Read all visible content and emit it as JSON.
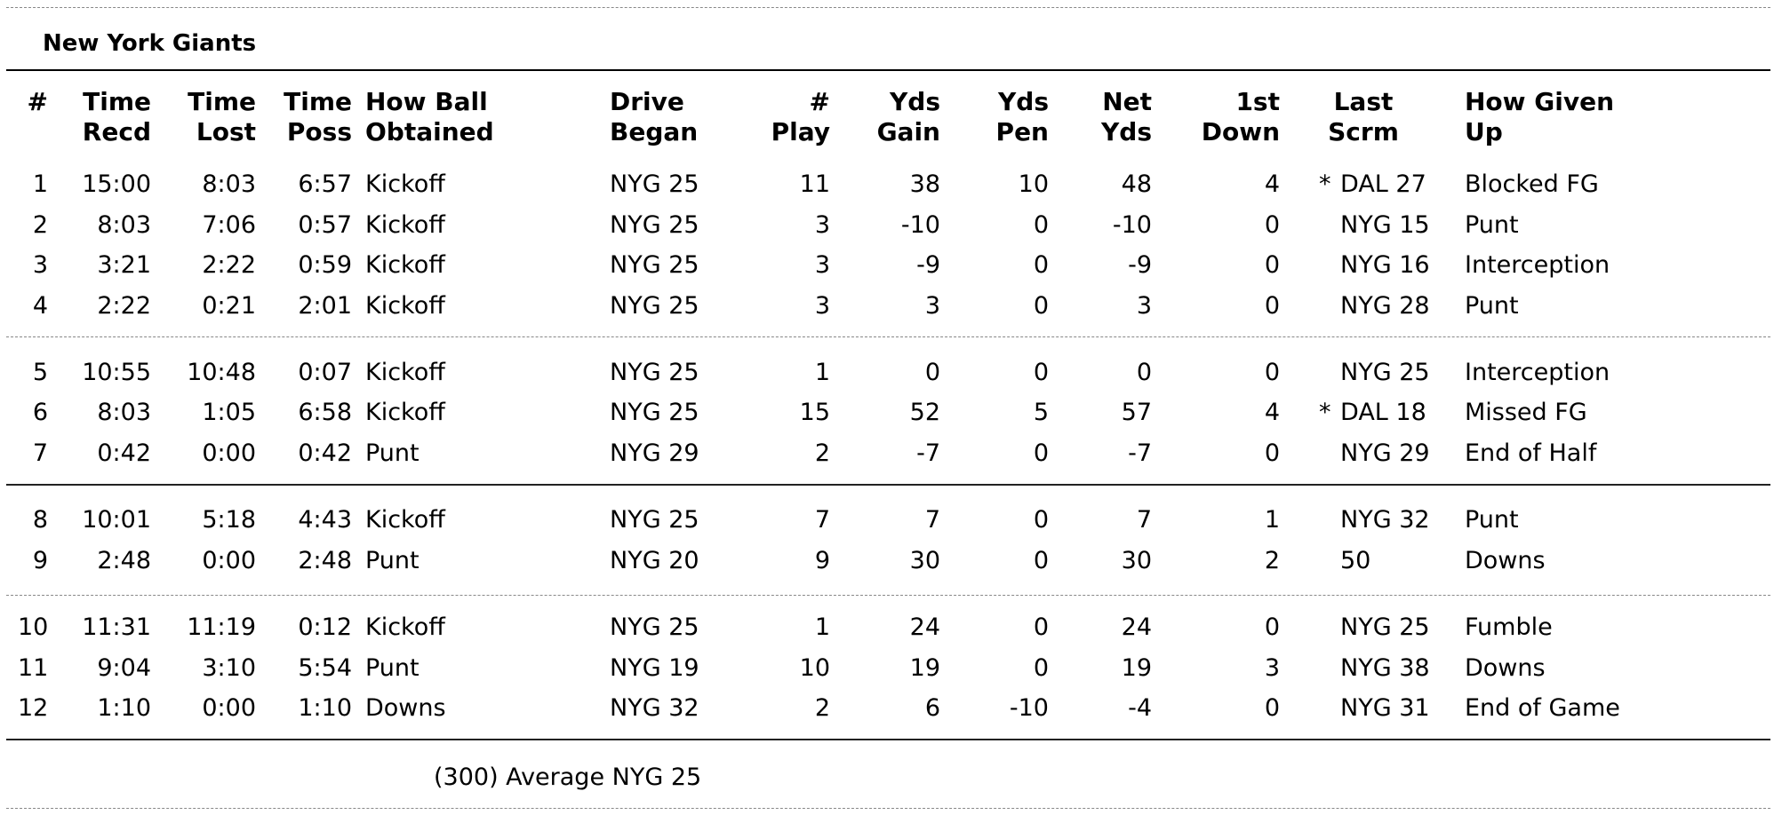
{
  "team": "New York Giants",
  "headers": {
    "num": [
      "#",
      ""
    ],
    "time_recd": [
      "Time",
      "Recd"
    ],
    "time_lost": [
      "Time",
      "Lost"
    ],
    "time_poss": [
      "Time",
      "Poss"
    ],
    "how_obtained": [
      "How Ball",
      "Obtained"
    ],
    "drive_began": [
      "Drive",
      "Began"
    ],
    "plays": [
      "#",
      "Play"
    ],
    "yds_gain": [
      "Yds",
      "Gain"
    ],
    "yds_pen": [
      "Yds",
      "Pen"
    ],
    "net_yds": [
      "Net",
      "Yds"
    ],
    "first_down": [
      "1st",
      "Down"
    ],
    "last_scrm": [
      "Last",
      "Scrm"
    ],
    "how_given_up": [
      "How Given",
      "Up"
    ]
  },
  "drives": [
    {
      "num": "1",
      "recd": "15:00",
      "lost": "8:03",
      "poss": "6:57",
      "obtained": "Kickoff",
      "began": "NYG 25",
      "plays": "11",
      "gain": "38",
      "pen": "10",
      "net": "48",
      "first": "4",
      "marker": "*",
      "scrm": "DAL 27",
      "given": "Blocked FG"
    },
    {
      "num": "2",
      "recd": "8:03",
      "lost": "7:06",
      "poss": "0:57",
      "obtained": "Kickoff",
      "began": "NYG 25",
      "plays": "3",
      "gain": "-10",
      "pen": "0",
      "net": "-10",
      "first": "0",
      "marker": "",
      "scrm": "NYG 15",
      "given": "Punt"
    },
    {
      "num": "3",
      "recd": "3:21",
      "lost": "2:22",
      "poss": "0:59",
      "obtained": "Kickoff",
      "began": "NYG 25",
      "plays": "3",
      "gain": "-9",
      "pen": "0",
      "net": "-9",
      "first": "0",
      "marker": "",
      "scrm": "NYG 16",
      "given": "Interception"
    },
    {
      "num": "4",
      "recd": "2:22",
      "lost": "0:21",
      "poss": "2:01",
      "obtained": "Kickoff",
      "began": "NYG 25",
      "plays": "3",
      "gain": "3",
      "pen": "0",
      "net": "3",
      "first": "0",
      "marker": "",
      "scrm": "NYG 28",
      "given": "Punt"
    },
    {
      "num": "5",
      "recd": "10:55",
      "lost": "10:48",
      "poss": "0:07",
      "obtained": "Kickoff",
      "began": "NYG 25",
      "plays": "1",
      "gain": "0",
      "pen": "0",
      "net": "0",
      "first": "0",
      "marker": "",
      "scrm": "NYG 25",
      "given": "Interception"
    },
    {
      "num": "6",
      "recd": "8:03",
      "lost": "1:05",
      "poss": "6:58",
      "obtained": "Kickoff",
      "began": "NYG 25",
      "plays": "15",
      "gain": "52",
      "pen": "5",
      "net": "57",
      "first": "4",
      "marker": "*",
      "scrm": "DAL 18",
      "given": "Missed FG"
    },
    {
      "num": "7",
      "recd": "0:42",
      "lost": "0:00",
      "poss": "0:42",
      "obtained": "Punt",
      "began": "NYG 29",
      "plays": "2",
      "gain": "-7",
      "pen": "0",
      "net": "-7",
      "first": "0",
      "marker": "",
      "scrm": "NYG 29",
      "given": "End of Half"
    },
    {
      "num": "8",
      "recd": "10:01",
      "lost": "5:18",
      "poss": "4:43",
      "obtained": "Kickoff",
      "began": "NYG 25",
      "plays": "7",
      "gain": "7",
      "pen": "0",
      "net": "7",
      "first": "1",
      "marker": "",
      "scrm": "NYG 32",
      "given": "Punt"
    },
    {
      "num": "9",
      "recd": "2:48",
      "lost": "0:00",
      "poss": "2:48",
      "obtained": "Punt",
      "began": "NYG 20",
      "plays": "9",
      "gain": "30",
      "pen": "0",
      "net": "30",
      "first": "2",
      "marker": "",
      "scrm": "50",
      "given": "Downs"
    },
    {
      "num": "10",
      "recd": "11:31",
      "lost": "11:19",
      "poss": "0:12",
      "obtained": "Kickoff",
      "began": "NYG 25",
      "plays": "1",
      "gain": "24",
      "pen": "0",
      "net": "24",
      "first": "0",
      "marker": "",
      "scrm": "NYG 25",
      "given": "Fumble"
    },
    {
      "num": "11",
      "recd": "9:04",
      "lost": "3:10",
      "poss": "5:54",
      "obtained": "Punt",
      "began": "NYG 19",
      "plays": "10",
      "gain": "19",
      "pen": "0",
      "net": "19",
      "first": "3",
      "marker": "",
      "scrm": "NYG 38",
      "given": "Downs"
    },
    {
      "num": "12",
      "recd": "1:10",
      "lost": "0:00",
      "poss": "1:10",
      "obtained": "Downs",
      "began": "NYG 32",
      "plays": "2",
      "gain": "6",
      "pen": "-10",
      "net": "-4",
      "first": "0",
      "marker": "",
      "scrm": "NYG 31",
      "given": "End of Game"
    }
  ],
  "footer": "(300) Average NYG 25"
}
